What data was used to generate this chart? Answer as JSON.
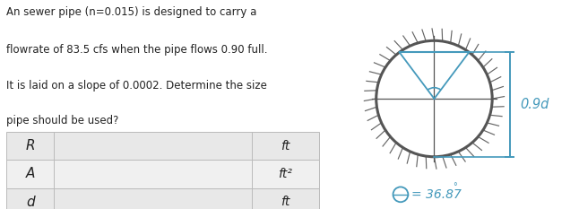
{
  "problem_text": "An sewer pipe (n=0.015) is designed to carry a\nflowrate of 83.5 cfs when the pipe flows 0.90 full.\nIt is laid on a slope of 0.0002. Determine the size\npipe should be used?",
  "table_rows": [
    {
      "label": "R",
      "unit": "ft"
    },
    {
      "label": "A",
      "unit": "ft²"
    },
    {
      "label": "d",
      "unit": "ft"
    }
  ],
  "pipe_color": "#555555",
  "dimension_color": "#4499bb",
  "angle_label": "= 36.87",
  "angle_degree": "°",
  "dimension_label": "0.9d",
  "background_color": "#ffffff",
  "text_color": "#222222",
  "hatch_color": "#666666",
  "table_bg_odd": "#e8e8e8",
  "table_bg_even": "#f0f0f0",
  "table_border": "#bbbbbb"
}
